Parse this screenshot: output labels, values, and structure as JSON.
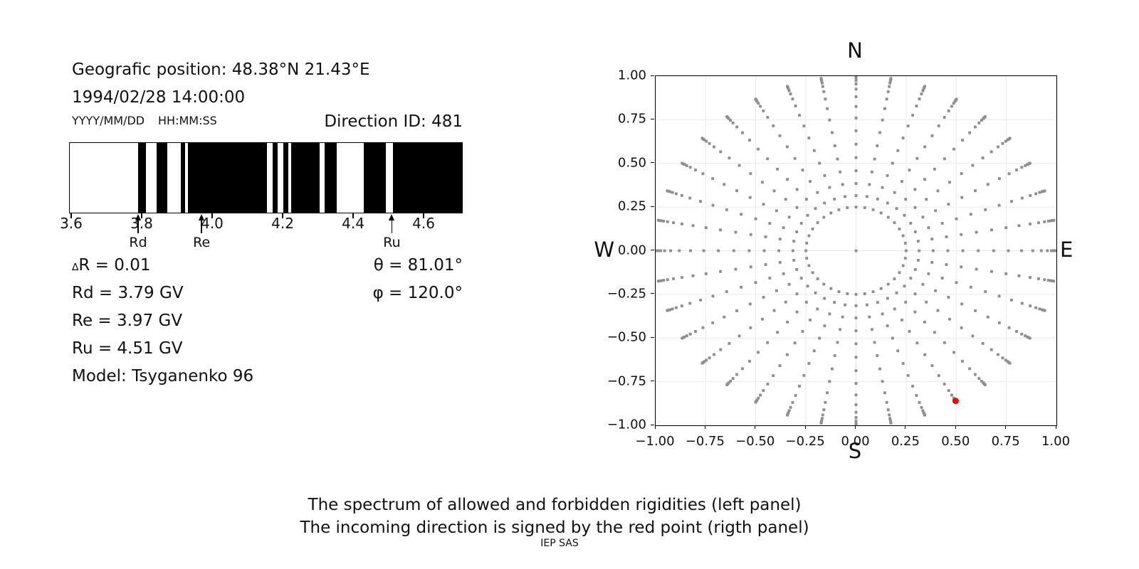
{
  "header": {
    "geographic_position": "Geografic position: 48.38°N 21.43°E",
    "datetime": "1994/02/28 14:00:00",
    "date_format_hint": "YYYY/MM/DD",
    "time_format_hint": "HH:MM:SS",
    "direction_id": "Direction ID: 481"
  },
  "parameters": {
    "delta_symbol": "∆",
    "delta_r": "R = 0.01",
    "rd": "Rd = 3.79 GV",
    "re": "Re = 3.97 GV",
    "ru": "Ru = 4.51 GV",
    "model": "Model: Tsyganenko 96",
    "theta": "θ = 81.01°",
    "phi": "φ = 120.0°"
  },
  "captions": {
    "line1": "The spectrum of allowed and forbidden rigidities (left panel)",
    "line2": "The incoming direction is signed by the red point (rigth panel)",
    "credit": "IEP SAS"
  },
  "spectrum": {
    "axis_min_gv": 3.594,
    "axis_max_gv": 4.711,
    "allowed_color": "#000000",
    "forbidden_color": "#ffffff",
    "ticks": [
      {
        "value": 3.6,
        "label": "3.6"
      },
      {
        "value": 3.8,
        "label": "3.8"
      },
      {
        "value": 4.0,
        "label": "4.0"
      },
      {
        "value": 4.2,
        "label": "4.2"
      },
      {
        "value": 4.4,
        "label": "4.4"
      },
      {
        "value": 4.6,
        "label": "4.6"
      }
    ],
    "allowed_segments_gv": [
      [
        3.789,
        3.81
      ],
      [
        3.841,
        3.872
      ],
      [
        3.911,
        3.922
      ],
      [
        3.931,
        4.156
      ],
      [
        4.172,
        4.186
      ],
      [
        4.202,
        4.216
      ],
      [
        4.224,
        4.305
      ],
      [
        4.32,
        4.354
      ],
      [
        4.432,
        4.495
      ],
      [
        4.514,
        4.711
      ]
    ],
    "markers": [
      {
        "label": "Rd",
        "value_gv": 3.79
      },
      {
        "label": "Re",
        "value_gv": 3.97
      },
      {
        "label": "Ru",
        "value_gv": 4.51
      }
    ]
  },
  "chart_data": [
    {
      "type": "bar",
      "subtype": "allowed-forbidden-rigidity-barcode",
      "categories_ticks": [
        "3.6",
        "3.8",
        "4.0",
        "4.2",
        "4.4",
        "4.6"
      ],
      "axis_range_gv": [
        3.594,
        4.711
      ],
      "allowed_intervals_gv": [
        [
          3.789,
          3.81
        ],
        [
          3.841,
          3.872
        ],
        [
          3.911,
          3.922
        ],
        [
          3.931,
          4.156
        ],
        [
          4.172,
          4.186
        ],
        [
          4.202,
          4.216
        ],
        [
          4.224,
          4.305
        ],
        [
          4.32,
          4.354
        ],
        [
          4.432,
          4.495
        ],
        [
          4.514,
          4.711
        ]
      ],
      "cutoff_markers": {
        "Rd": 3.79,
        "Re": 3.97,
        "Ru": 4.51
      },
      "legend_position": "none",
      "grid": false
    },
    {
      "type": "scatter",
      "xlim": [
        -1,
        1
      ],
      "ylim": [
        -1,
        1
      ],
      "grid": true,
      "grid_color": "#e9e9e9",
      "dot_color": "#8f8f8f",
      "red_point_color": "#ff0000",
      "labels": {
        "n": "N",
        "s": "S",
        "w": "W",
        "e": "E"
      },
      "xticks": [
        {
          "value": -1.0,
          "label": "−1.00"
        },
        {
          "value": -0.75,
          "label": "−0.75"
        },
        {
          "value": -0.5,
          "label": "−0.50"
        },
        {
          "value": -0.25,
          "label": "−0.25"
        },
        {
          "value": 0.0,
          "label": "0.00"
        },
        {
          "value": 0.25,
          "label": "0.25"
        },
        {
          "value": 0.5,
          "label": "0.50"
        },
        {
          "value": 0.75,
          "label": "0.75"
        },
        {
          "value": 1.0,
          "label": "1.00"
        }
      ],
      "yticks": [
        {
          "value": 1.0,
          "label": "1.00"
        },
        {
          "value": 0.75,
          "label": "0.75"
        },
        {
          "value": 0.5,
          "label": "0.50"
        },
        {
          "value": 0.25,
          "label": "0.25"
        },
        {
          "value": 0.0,
          "label": "0.00"
        },
        {
          "value": -0.25,
          "label": "−0.25"
        },
        {
          "value": -0.5,
          "label": "−0.50"
        },
        {
          "value": -0.75,
          "label": "−0.75"
        },
        {
          "value": -1.0,
          "label": "−1.00"
        }
      ],
      "ray_angles_deg": [
        0,
        10,
        20,
        30,
        40,
        50,
        60,
        70,
        80,
        90,
        100,
        110,
        120,
        130,
        140,
        150,
        160,
        170,
        180,
        190,
        200,
        210,
        220,
        230,
        240,
        250,
        260,
        270,
        280,
        290,
        300,
        310,
        320,
        330,
        340,
        350
      ],
      "ray_radii": [
        0.25,
        0.315,
        0.385,
        0.458,
        0.533,
        0.61,
        0.687,
        0.76,
        0.826,
        0.882,
        0.925,
        0.955,
        0.975,
        0.988,
        0.996,
        1.002
      ],
      "origin_dot": {
        "x": 0.0,
        "y": 0.0
      },
      "red_point": {
        "x": 0.497,
        "y": -0.86
      }
    }
  ]
}
